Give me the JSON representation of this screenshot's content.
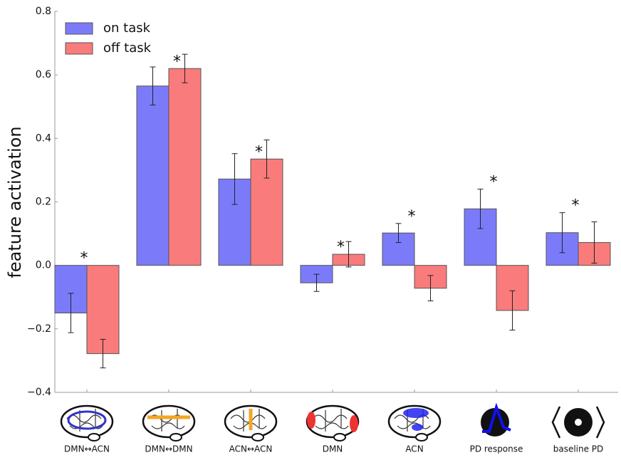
{
  "chart_data": {
    "type": "bar",
    "ylabel": "feature activation",
    "categories": [
      "DMN↔ACN",
      "DMN↔DMN",
      "ACN↔ACN",
      "DMN",
      "ACN",
      "PD response",
      "baseline PD"
    ],
    "series": [
      {
        "name": "on task",
        "color": "#7b7bfa",
        "values": [
          -0.15,
          0.565,
          0.272,
          -0.055,
          0.102,
          0.178,
          0.103
        ],
        "errors": [
          0.062,
          0.06,
          0.08,
          0.027,
          0.03,
          0.062,
          0.063
        ]
      },
      {
        "name": "off task",
        "color": "#f97b7b",
        "values": [
          -0.278,
          0.62,
          0.335,
          0.035,
          -0.072,
          -0.142,
          0.072
        ],
        "errors": [
          0.045,
          0.045,
          0.06,
          0.04,
          0.04,
          0.062,
          0.065
        ]
      }
    ],
    "markers": [
      "*",
      "*",
      "*",
      "*",
      "*",
      "*",
      "*"
    ],
    "ylim": [
      -0.4,
      0.8
    ],
    "yticks": [
      {
        "value": -0.4,
        "label": "−0.4"
      },
      {
        "value": -0.2,
        "label": "−0.2"
      },
      {
        "value": 0,
        "label": "0.0"
      },
      0.2,
      0.4,
      0.6,
      0.8
    ],
    "legend": "upper left"
  }
}
